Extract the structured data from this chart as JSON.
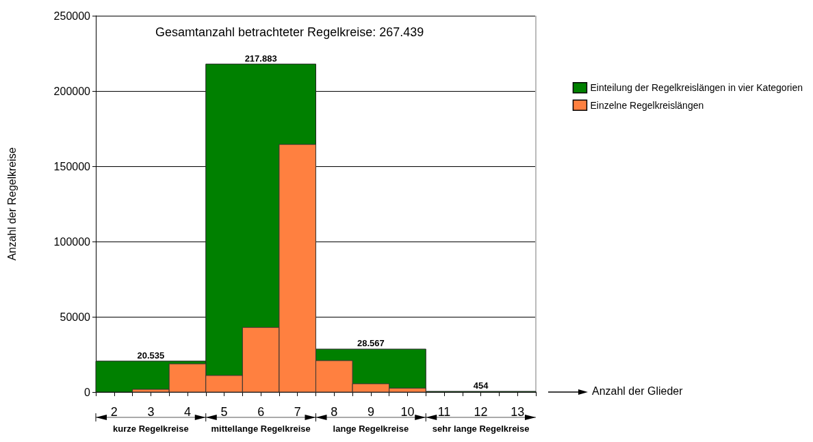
{
  "chart_data": {
    "type": "bar",
    "title": "Gesamtanzahl betrachteter Regelkreise: 267.439",
    "ylabel": "Anzahl der Regelkreise",
    "xlim": [
      1.5,
      13.5
    ],
    "xticks": [
      {
        "value": 1.5,
        "label": null
      },
      {
        "value": 2,
        "label": "2"
      },
      {
        "value": 2.5,
        "label": null
      },
      {
        "value": 3,
        "label": "3"
      },
      {
        "value": 3.5,
        "label": null
      },
      {
        "value": 4,
        "label": "4"
      },
      {
        "value": 4.5,
        "label": null
      },
      {
        "value": 5,
        "label": "5"
      },
      {
        "value": 5.5,
        "label": null
      },
      {
        "value": 6,
        "label": "6"
      },
      {
        "value": 6.5,
        "label": null
      },
      {
        "value": 7,
        "label": "7"
      },
      {
        "value": 7.5,
        "label": null
      },
      {
        "value": 8,
        "label": "8"
      },
      {
        "value": 8.5,
        "label": null
      },
      {
        "value": 9,
        "label": "9"
      },
      {
        "value": 9.5,
        "label": null
      },
      {
        "value": 10,
        "label": "10"
      },
      {
        "value": 10.5,
        "label": null
      },
      {
        "value": 11,
        "label": "11"
      },
      {
        "value": 11.5,
        "label": null
      },
      {
        "value": 12,
        "label": "12"
      },
      {
        "value": 12.5,
        "label": null
      },
      {
        "value": 13,
        "label": "13"
      },
      {
        "value": 13.5,
        "label": null
      }
    ],
    "series": [
      {
        "name": "Einteilung der Regelkreislängen in vier Kategorien",
        "type": "histogram",
        "color": "#008000",
        "bins": [
          1.5,
          4.5,
          7.5,
          10.5,
          13.5
        ],
        "values": [
          20535,
          217883,
          28567,
          454
        ],
        "value_labels": [
          "20.535",
          "217.883",
          "28.567",
          "454"
        ]
      },
      {
        "name": "Einzelne Regelkreislängen",
        "color": "#ff8040",
        "x": [
          3,
          4,
          5,
          6,
          7,
          8,
          9,
          10
        ],
        "values": [
          1800,
          18700,
          11000,
          42900,
          164500,
          20900,
          5500,
          2600
        ]
      }
    ],
    "ylim": [
      0,
      250000
    ],
    "yticks": [
      0,
      50000,
      100000,
      150000,
      200000,
      250000
    ],
    "grid": "y",
    "legend": "top right",
    "annotations": [
      "kurze Regelkreise",
      "mittellange Regelkreise",
      "lange Regelkreise",
      "sehr lange Regelkreise",
      "Anzahl der Glieder"
    ]
  }
}
